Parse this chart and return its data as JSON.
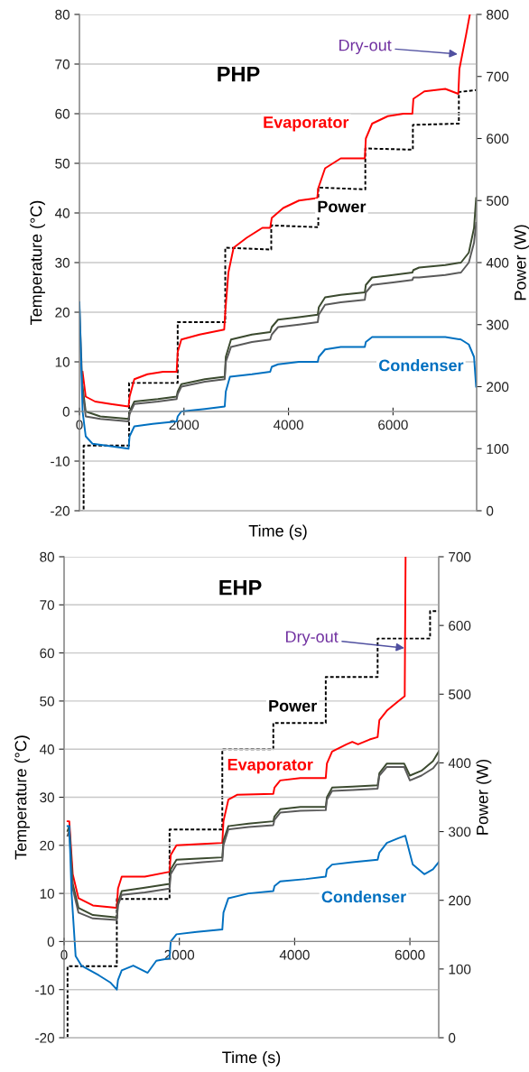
{
  "chart_data": [
    {
      "type": "line",
      "title": "PHP",
      "xlabel": "Time (s)",
      "ylabel": "Temperature (°C)",
      "y2label": "Power (W)",
      "xlim": [
        0,
        7600
      ],
      "xticks": [
        0,
        2000,
        4000,
        6000
      ],
      "ylim": [
        -20,
        80
      ],
      "yticks": [
        -20,
        -10,
        0,
        10,
        20,
        30,
        40,
        50,
        60,
        70,
        80
      ],
      "y2lim": [
        0,
        800
      ],
      "y2ticks": [
        0,
        100,
        200,
        300,
        400,
        500,
        600,
        700,
        800
      ],
      "grid": "y",
      "legend": false,
      "annotations": [
        {
          "text": "Dry-out",
          "x": 7260,
          "y": 72
        }
      ],
      "series": [
        {
          "name": "Evaporator",
          "color": "#ff0000",
          "x": [
            60,
            120,
            300,
            600,
            940,
            960,
            1050,
            1300,
            1600,
            1860,
            1880,
            1950,
            2300,
            2770,
            2790,
            2850,
            2950,
            3200,
            3500,
            3650,
            3680,
            3900,
            4200,
            4550,
            4570,
            4700,
            5000,
            5300,
            5460,
            5480,
            5600,
            5900,
            6200,
            6370,
            6390,
            6600,
            7000,
            7250,
            7270,
            7400,
            7470
          ],
          "values": [
            8,
            3,
            2,
            1.5,
            1,
            3,
            6.5,
            7.5,
            8,
            8,
            12,
            14.5,
            15.5,
            16.5,
            20,
            28,
            33,
            35,
            37,
            37,
            39,
            41,
            42.5,
            43,
            45,
            49,
            51,
            51,
            51,
            55,
            58,
            59.5,
            60,
            60,
            63,
            64.5,
            65,
            64,
            69,
            76,
            80
          ]
        },
        {
          "color": "#3b4a2f",
          "x": [
            60,
            120,
            400,
            940,
            960,
            1050,
            1500,
            1860,
            1880,
            1950,
            2400,
            2780,
            2800,
            2900,
            3300,
            3650,
            3680,
            3800,
            4200,
            4560,
            4580,
            4700,
            5000,
            5460,
            5480,
            5600,
            6000,
            6370,
            6390,
            6500,
            7000,
            7300,
            7450,
            7550,
            7590
          ],
          "values": [
            5,
            0,
            -1,
            -1.5,
            0,
            2,
            2.5,
            3,
            4,
            5.5,
            6.5,
            7,
            11,
            14.5,
            15.5,
            16,
            17,
            18.5,
            19,
            19.5,
            21,
            23,
            23.5,
            24,
            25.5,
            27,
            27.5,
            28,
            28.5,
            29,
            29.5,
            30,
            32,
            37,
            43
          ]
        },
        {
          "color": "#5a5a5a",
          "x": [
            0,
            60,
            120,
            400,
            940,
            960,
            1050,
            1500,
            1860,
            1880,
            1950,
            2400,
            2780,
            2800,
            2900,
            3300,
            3650,
            3680,
            3800,
            4200,
            4560,
            4580,
            4700,
            5000,
            5460,
            5480,
            5600,
            6000,
            6370,
            6390,
            6500,
            7000,
            7300,
            7450,
            7550,
            7590
          ],
          "values": [
            21,
            4,
            -1,
            -1.5,
            -2,
            -0.5,
            1.5,
            2,
            2.5,
            3.5,
            5,
            6,
            6.5,
            10,
            13,
            14,
            14.5,
            15.5,
            17,
            17.5,
            18,
            19.5,
            21.5,
            22,
            22.5,
            24,
            25.5,
            26,
            26.5,
            27,
            27,
            27.5,
            28,
            30,
            34,
            38
          ]
        },
        {
          "name": "Condenser",
          "color": "#0070c0",
          "x": [
            0,
            60,
            120,
            250,
            600,
            940,
            960,
            1050,
            1400,
            1860,
            1880,
            1950,
            2400,
            2780,
            2800,
            2880,
            3300,
            3650,
            3680,
            3800,
            4200,
            4560,
            4580,
            4700,
            5000,
            5460,
            5480,
            5600,
            6000,
            6500,
            7000,
            7300,
            7450,
            7550,
            7590
          ],
          "values": [
            22,
            0,
            -5,
            -6.5,
            -7,
            -7.5,
            -5,
            -3,
            -2.5,
            -2,
            -1,
            0,
            0.5,
            1,
            4,
            7,
            7.5,
            8,
            9,
            9.5,
            10,
            10,
            11,
            12.5,
            13,
            13,
            14,
            15,
            15,
            15,
            15,
            14.5,
            13.5,
            11,
            5
          ]
        },
        {
          "name": "Power",
          "color": "#000000",
          "axis": "y2",
          "line_style": "dashed",
          "x": [
            0,
            80,
            80,
            950,
            950,
            1880,
            1880,
            2790,
            2790,
            3670,
            3670,
            4570,
            4570,
            5470,
            5470,
            6380,
            6380,
            7260,
            7260,
            7590
          ],
          "values": [
            0,
            0,
            105,
            105,
            206,
            206,
            304,
            304,
            424,
            421,
            460,
            457,
            521,
            518,
            584,
            582,
            622,
            624,
            675,
            678
          ]
        }
      ]
    },
    {
      "type": "line",
      "title": "EHP",
      "xlabel": "Time (s)",
      "ylabel": "Temperature (°C)",
      "y2label": "Power (W)",
      "xlim": [
        0,
        6500
      ],
      "xticks": [
        0,
        2000,
        4000,
        6000
      ],
      "ylim": [
        -20,
        80
      ],
      "yticks": [
        -20,
        -10,
        0,
        10,
        20,
        30,
        40,
        50,
        60,
        70,
        80
      ],
      "y2lim": [
        0,
        700
      ],
      "y2ticks": [
        0,
        100,
        200,
        300,
        400,
        500,
        600,
        700
      ],
      "grid": "y",
      "legend": false,
      "annotations": [
        {
          "text": "Dry-out",
          "x": 5925,
          "y": 61
        }
      ],
      "series": [
        {
          "name": "Evaporator",
          "color": "#ff0000",
          "x": [
            60,
            90,
            150,
            250,
            500,
            900,
            915,
            935,
            1000,
            1400,
            1830,
            1850,
            1950,
            2400,
            2745,
            2765,
            2850,
            3000,
            3630,
            3650,
            3750,
            4100,
            4540,
            4560,
            4650,
            4900,
            5000,
            5100,
            5300,
            5440,
            5470,
            5600,
            5800,
            5910,
            5925
          ],
          "values": [
            25,
            25,
            14,
            9,
            7.5,
            7,
            7,
            11,
            13.5,
            13.5,
            14.5,
            18,
            20,
            20.3,
            20.5,
            25,
            29.5,
            30.5,
            30.7,
            32,
            33.5,
            34,
            34,
            37,
            39.5,
            41,
            41.5,
            41,
            42,
            42.5,
            46,
            48,
            50,
            51,
            80
          ]
        },
        {
          "color": "#3b4a2f",
          "x": [
            60,
            90,
            150,
            250,
            500,
            915,
            935,
            1000,
            1400,
            1830,
            1850,
            1950,
            2400,
            2745,
            2765,
            2850,
            3200,
            3630,
            3650,
            3750,
            4100,
            4540,
            4560,
            4650,
            5000,
            5440,
            5470,
            5600,
            5900,
            6000,
            6200,
            6400,
            6500
          ],
          "values": [
            23,
            24,
            12,
            7,
            5.5,
            5,
            8,
            10.5,
            11.2,
            12,
            15,
            17,
            17.3,
            17.5,
            21,
            24,
            24.5,
            25,
            26,
            27.5,
            28,
            28,
            30,
            32,
            32.2,
            32.5,
            35,
            37,
            37,
            34.5,
            35.5,
            37.5,
            39.5
          ]
        },
        {
          "color": "#5a5a5a",
          "x": [
            60,
            90,
            150,
            250,
            500,
            915,
            935,
            1000,
            1400,
            1830,
            1850,
            1950,
            2400,
            2745,
            2765,
            2850,
            3200,
            3630,
            3650,
            3750,
            4100,
            4540,
            4560,
            4650,
            5000,
            5440,
            5470,
            5600,
            5900,
            6000,
            6200,
            6400,
            6500
          ],
          "values": [
            22,
            23,
            11,
            6,
            4.8,
            4.5,
            7.5,
            9.7,
            10.2,
            11,
            14,
            16,
            16.5,
            16.8,
            20,
            23.3,
            23.8,
            24.2,
            25.3,
            26.8,
            27.2,
            27.3,
            29.5,
            31.3,
            31.5,
            31.8,
            34.5,
            36.3,
            36.3,
            33.5,
            34.5,
            36,
            37.5
          ]
        },
        {
          "name": "Condenser",
          "color": "#0070c0",
          "x": [
            60,
            90,
            130,
            200,
            300,
            600,
            800,
            915,
            935,
            1000,
            1200,
            1450,
            1600,
            1830,
            1850,
            1950,
            2300,
            2745,
            2765,
            2850,
            3200,
            3630,
            3650,
            3750,
            4200,
            4540,
            4560,
            4650,
            5000,
            5440,
            5470,
            5600,
            5800,
            5920,
            6050,
            6250,
            6400,
            6500
          ],
          "values": [
            24,
            24,
            10,
            -3,
            -5,
            -7,
            -8.5,
            -10,
            -8,
            -6,
            -5,
            -6.5,
            -4,
            -3.5,
            0,
            1.5,
            2,
            2.5,
            6,
            9,
            10,
            10.5,
            11.5,
            12.5,
            13,
            13.5,
            15,
            16,
            16.5,
            17,
            18.5,
            20.5,
            21.5,
            22,
            16,
            14,
            15,
            16.5
          ]
        },
        {
          "name": "Power",
          "color": "#000000",
          "axis": "y2",
          "line_style": "dashed",
          "x": [
            60,
            60,
            915,
            915,
            1830,
            1830,
            2745,
            2745,
            3630,
            3630,
            4540,
            4540,
            5440,
            5440,
            6350,
            6350,
            6500
          ],
          "values": [
            0,
            104,
            104,
            202,
            202,
            303,
            303,
            420,
            420,
            458,
            458,
            525,
            525,
            581,
            581,
            621,
            621
          ]
        }
      ]
    }
  ]
}
